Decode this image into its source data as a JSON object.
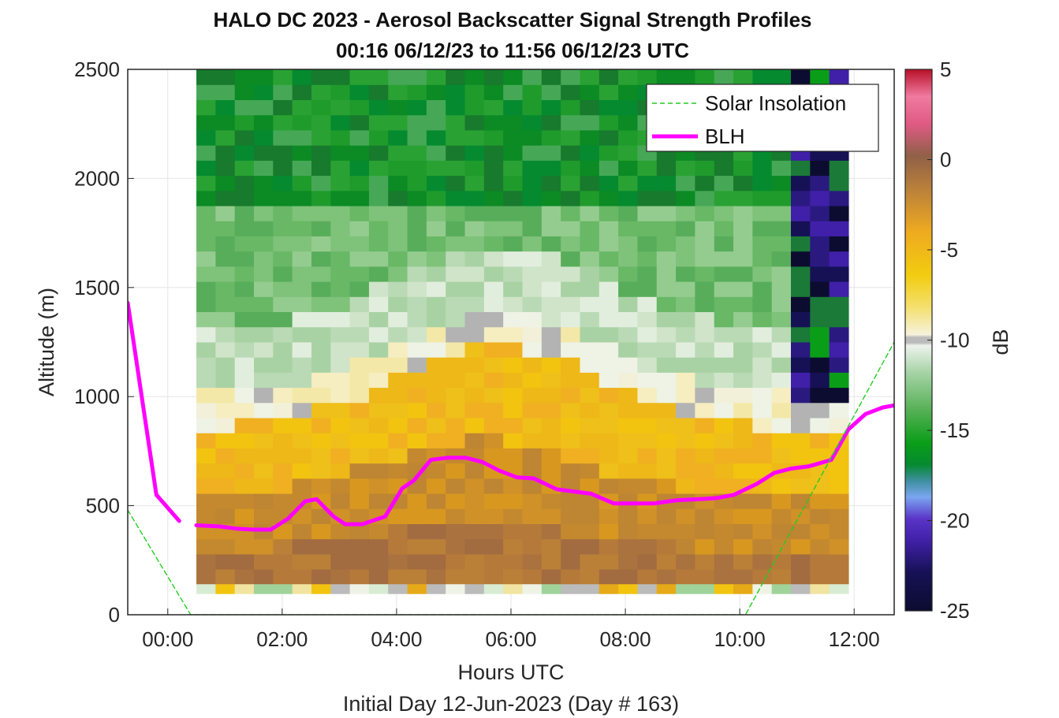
{
  "chart_data": {
    "type": "heatmap",
    "title": "HALO DC 2023 - Aerosol Backscatter Signal Strength Profiles",
    "subtitle": "00:16 06/12/23 to 11:56 06/12/23  UTC",
    "xlabel": "Hours UTC",
    "xlabel2": "Initial Day 12-Jun-2023 (Day # 163)",
    "ylabel": "Altitude (m)",
    "colorbar_label": "dB",
    "xlim": [
      -0.7,
      12.7
    ],
    "ylim": [
      0,
      2500
    ],
    "clim": [
      -25,
      5
    ],
    "x_ticks": [
      {
        "value": 0,
        "label": "00:00"
      },
      {
        "value": 2,
        "label": "02:00"
      },
      {
        "value": 4,
        "label": "04:00"
      },
      {
        "value": 6,
        "label": "06:00"
      },
      {
        "value": 8,
        "label": "08:00"
      },
      {
        "value": 10,
        "label": "10:00"
      },
      {
        "value": 12,
        "label": "12:00"
      }
    ],
    "y_ticks": [
      {
        "value": 0,
        "label": "0"
      },
      {
        "value": 500,
        "label": "500"
      },
      {
        "value": 1000,
        "label": "1000"
      },
      {
        "value": 1500,
        "label": "1500"
      },
      {
        "value": 2000,
        "label": "2000"
      },
      {
        "value": 2500,
        "label": "2500"
      }
    ],
    "colorbar_ticks": [
      {
        "value": 5,
        "label": "5"
      },
      {
        "value": 0,
        "label": "0"
      },
      {
        "value": -5,
        "label": "-5"
      },
      {
        "value": -10,
        "label": "-10"
      },
      {
        "value": -15,
        "label": "-15"
      },
      {
        "value": -20,
        "label": "-20"
      },
      {
        "value": -25,
        "label": "-25"
      }
    ],
    "grid": true,
    "legend_position": "top-right",
    "legend": [
      {
        "name": "Solar Insolation",
        "color": "#22cc22",
        "style": "dashed"
      },
      {
        "name": "BLH",
        "color": "#ff00ff",
        "style": "solid"
      }
    ],
    "heatmap_grid": {
      "x_start": 0.5,
      "x_end": 11.9,
      "columns": 34,
      "y_start": 140,
      "y_end": 2500,
      "rows": 34,
      "surface_row": {
        "y_start": 95,
        "y_end": 140
      },
      "description_of_values": "dB"
    },
    "series": [
      {
        "name": "BLH",
        "color": "#ff00ff",
        "segments": [
          {
            "x": [
              -0.7,
              -0.2,
              0.2
            ],
            "y": [
              1430,
              550,
              430
            ]
          },
          {
            "x": [
              0.5,
              0.9,
              1.2,
              1.5,
              1.8,
              2.1,
              2.4,
              2.6,
              2.9,
              3.1,
              3.4,
              3.8,
              4.1,
              4.3,
              4.6,
              4.9,
              5.2,
              5.5,
              5.8,
              6.1,
              6.4,
              6.8,
              7.1,
              7.4,
              7.8,
              8.2,
              8.5,
              8.9,
              9.3,
              9.6,
              9.9,
              10.3,
              10.6,
              10.9,
              11.2,
              11.6,
              11.9,
              12.2,
              12.5,
              12.7
            ],
            "y": [
              410,
              405,
              395,
              390,
              390,
              440,
              520,
              530,
              450,
              415,
              415,
              450,
              580,
              615,
              710,
              720,
              720,
              700,
              660,
              630,
              625,
              575,
              565,
              555,
              510,
              510,
              510,
              525,
              530,
              535,
              550,
              600,
              650,
              670,
              680,
              710,
              850,
              920,
              950,
              960
            ]
          }
        ]
      },
      {
        "name": "Solar Insolation",
        "color": "#22cc22",
        "segments": [
          {
            "x": [
              -0.7,
              0.4,
              0.9,
              9.6,
              10.1,
              12.7
            ],
            "y": [
              480,
              0,
              0,
              0,
              0,
              1250
            ]
          }
        ]
      }
    ]
  }
}
